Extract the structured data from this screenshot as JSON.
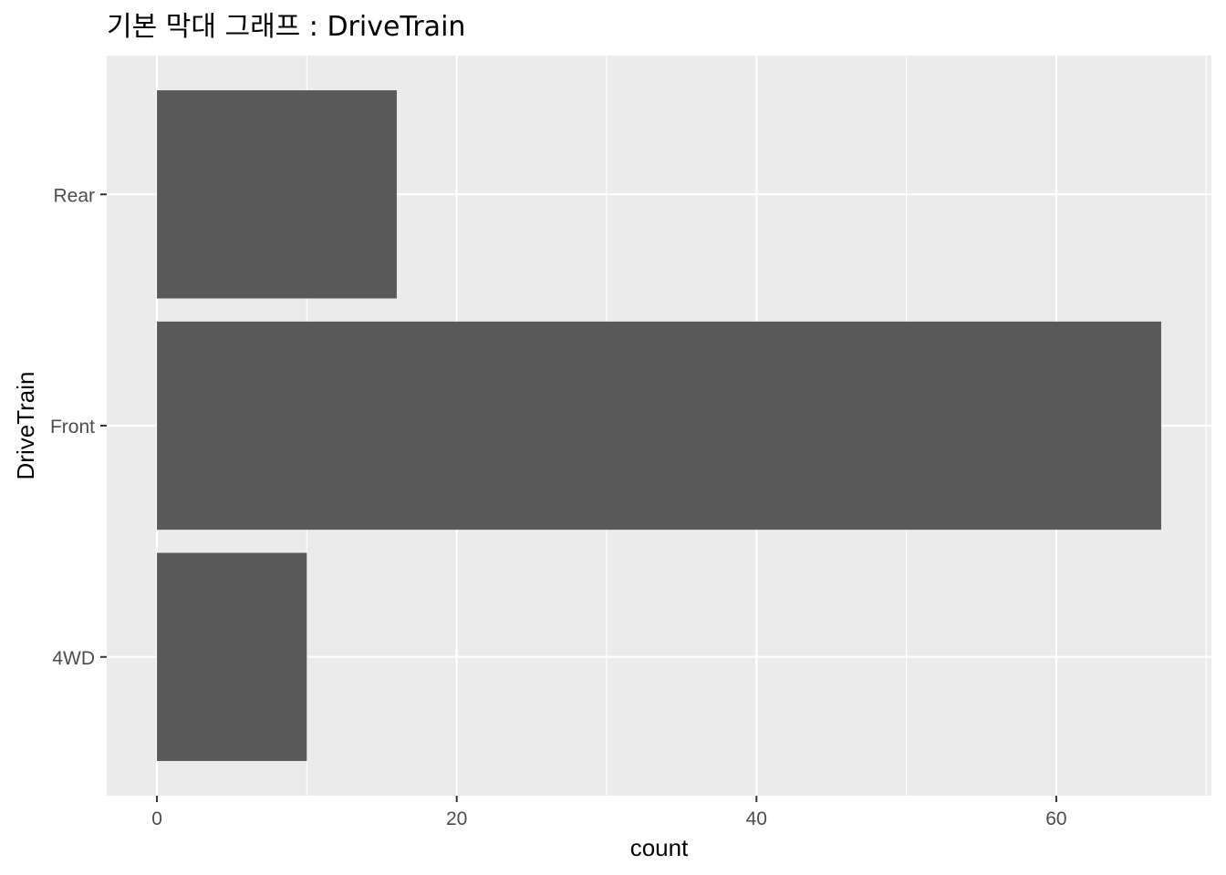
{
  "chart_data": {
    "type": "bar",
    "orientation": "horizontal",
    "title": "기본 막대 그래프 : DriveTrain",
    "xlabel": "count",
    "ylabel": "DriveTrain",
    "categories": [
      "4WD",
      "Front",
      "Rear"
    ],
    "values": [
      10,
      67,
      16
    ],
    "xlim": [
      -3.35,
      70.35
    ],
    "x_ticks": [
      0,
      20,
      40,
      60
    ],
    "x_minor_ticks": [
      10,
      30,
      50,
      70
    ],
    "grid": true,
    "legend": "none",
    "colors": {
      "bar": "#595959",
      "panel_background": "#ebebeb",
      "grid": "#ffffff",
      "tick_text": "#4d4d4d",
      "axis_title": "#000000"
    }
  }
}
